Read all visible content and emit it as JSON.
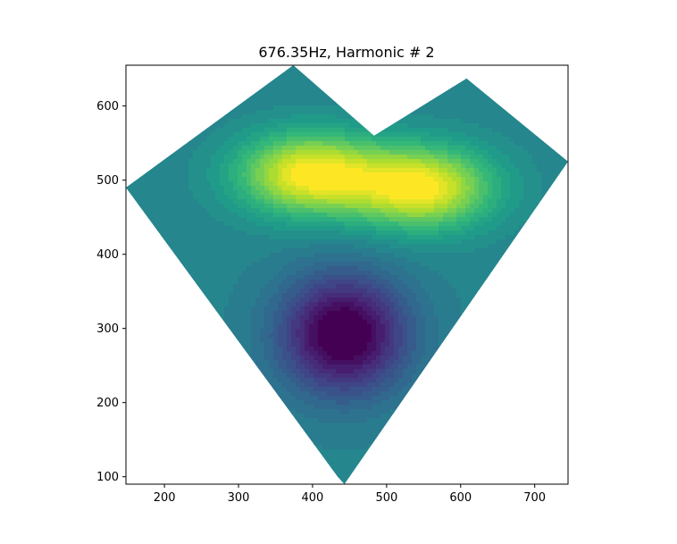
{
  "chart_data": {
    "type": "heatmap",
    "subtype": "filled-contour",
    "title": "676.35Hz, Harmonic # 2",
    "xlabel": "",
    "ylabel": "",
    "xlim": [
      148,
      745
    ],
    "ylim": [
      90,
      655
    ],
    "xticks": [
      200,
      300,
      400,
      500,
      600,
      700
    ],
    "yticks": [
      100,
      200,
      300,
      400,
      500,
      600
    ],
    "colormap": "viridis",
    "grid": false,
    "legend": "none",
    "region_boundary": [
      [
        148,
        490
      ],
      [
        374,
        655
      ],
      [
        483,
        560
      ],
      [
        608,
        637
      ],
      [
        745,
        525
      ],
      [
        443,
        90
      ],
      [
        434,
        100
      ]
    ],
    "extrema": [
      {
        "kind": "min",
        "x": 442,
        "y": 292,
        "level": 0.0
      },
      {
        "kind": "max",
        "x": 395,
        "y": 508,
        "level": 1.0
      },
      {
        "kind": "max",
        "x": 548,
        "y": 490,
        "level": 1.0
      }
    ]
  },
  "colors": {
    "background": "#ffffff",
    "viridis": [
      "#440154",
      "#482878",
      "#3e4989",
      "#31688e",
      "#26828e",
      "#1f9e89",
      "#35b779",
      "#6ece58",
      "#b5de2b",
      "#fde725"
    ]
  }
}
